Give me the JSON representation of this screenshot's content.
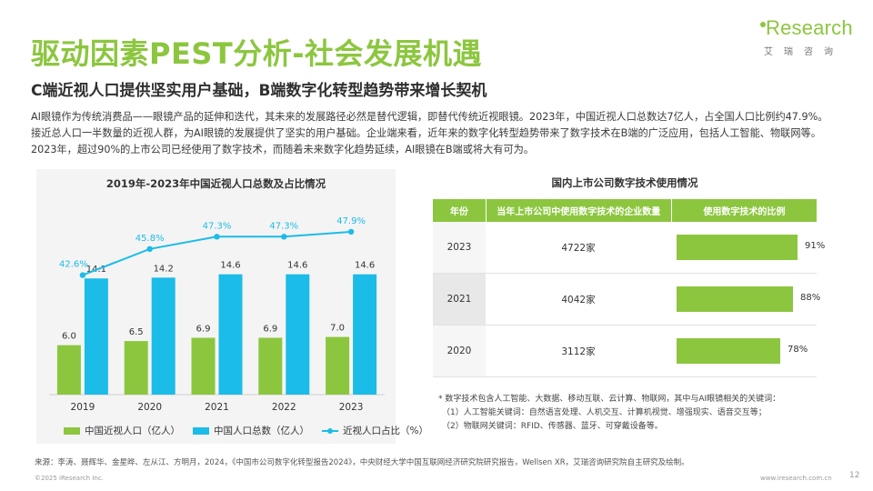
{
  "header": {
    "title": "驱动因素PEST分析-社会发展机遇",
    "subtitle": "C端近视人口提供坚实用户基础，B端数字化转型趋势带来增长契机"
  },
  "logo": {
    "word": "Research",
    "sub": "艾瑞咨询"
  },
  "intro": "AI眼镜作为传统消费品——眼镜产品的延伸和迭代，其未来的发展路径必然是替代逻辑，即替代传统近视眼镜。2023年，中国近视人口总数达7亿人，占全国人口比例约47.9%。接近总人口一半数量的近视人群，为AI眼镜的发展提供了坚实的用户基础。企业端来看，近年来的数字化转型趋势带来了数字技术在B端的广泛应用，包括人工智能、物联网等。2023年，超过90%的上市公司已经使用了数字技术，而随着未来数字化趋势延续，AI眼镜在B端或将大有可为。",
  "chart_data": [
    {
      "type": "bar",
      "title": "2019年-2023年中国近视人口总数及占比情况",
      "categories": [
        "2019",
        "2020",
        "2021",
        "2022",
        "2023"
      ],
      "series": [
        {
          "name": "中国近视人口（亿人）",
          "kind": "bar",
          "color": "#8cc63f",
          "values": [
            6.0,
            6.5,
            6.9,
            6.9,
            7.0
          ],
          "labels": [
            "6.0",
            "6.5",
            "6.9",
            "6.9",
            "7.0"
          ]
        },
        {
          "name": "中国人口总数（亿人）",
          "kind": "bar",
          "color": "#1bbce8",
          "values": [
            14.1,
            14.2,
            14.6,
            14.6,
            14.6
          ],
          "labels": [
            "14.1",
            "14.2",
            "14.6",
            "14.6",
            "14.6"
          ]
        },
        {
          "name": "近视人口占比（%）",
          "kind": "line",
          "color": "#1bbce8",
          "values": [
            42.6,
            45.8,
            47.3,
            47.3,
            47.9
          ],
          "labels": [
            "42.6%",
            "45.8%",
            "47.3%",
            "47.3%",
            "47.9%"
          ]
        }
      ],
      "legend_position": "bottom"
    },
    {
      "type": "table",
      "title": "国内上市公司数字技术使用情况",
      "columns": [
        "年份",
        "当年上市公司中使用数字技术的企业数量",
        "使用数字技术的比例"
      ],
      "rows": [
        {
          "year": "2023",
          "count": "4722家",
          "ratio": 91,
          "ratio_label": "91%"
        },
        {
          "year": "2021",
          "count": "4042家",
          "ratio": 88,
          "ratio_label": "88%"
        },
        {
          "year": "2020",
          "count": "3112家",
          "ratio": 78,
          "ratio_label": "78%"
        }
      ],
      "bar_color": "#8cc63f"
    }
  ],
  "notes": [
    "* 数字技术包含人工智能、大数据、移动互联、云计算、物联网，其中与AI眼镜相关的关键词：",
    "（1）人工智能关键词：自然语言处理、人机交互、计算机视觉、增强现实、语音交互等；",
    "（2）物联网关键词：RFID、传感器、蓝牙、可穿戴设备等。"
  ],
  "source": "来源：李涛、聂辉华、金星晔、左从江、方明月，2024，《中国市公司数字化转型报告2024》，中央财经大学中国互联网经济研究院研究报告，Wellsen XR，艾瑞咨询研究院自主研究及绘制。",
  "footer": {
    "copyright": "©2025 iResearch Inc.",
    "url": "www.iresearch.com.cn",
    "page": "12"
  }
}
